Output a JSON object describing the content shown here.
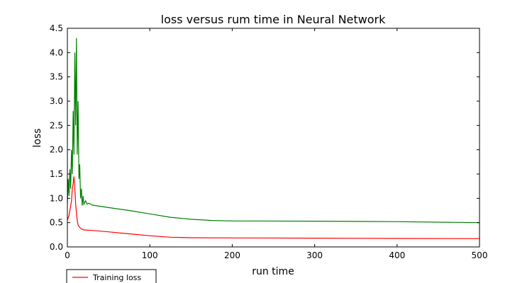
{
  "chart_data": {
    "type": "line",
    "title": "loss versus rum time in Neural Network",
    "xlabel": "run time",
    "ylabel": "loss",
    "xlim": [
      0,
      500
    ],
    "ylim": [
      0,
      4.5
    ],
    "x_ticks": [
      0,
      100,
      200,
      300,
      400,
      500
    ],
    "y_ticks": [
      0.0,
      0.5,
      1.0,
      1.5,
      2.0,
      2.5,
      3.0,
      3.5,
      4.0,
      4.5
    ],
    "x_tick_labels": [
      "0",
      "100",
      "200",
      "300",
      "400",
      "500"
    ],
    "y_tick_labels": [
      "0.0",
      "0.5",
      "1.0",
      "1.5",
      "2.0",
      "2.5",
      "3.0",
      "3.5",
      "4.0",
      "4.5"
    ],
    "grid": false,
    "legend_position": "bottom-left",
    "series": [
      {
        "name": "Training loss",
        "color": "#ff0000",
        "points": [
          [
            0,
            0.55
          ],
          [
            1,
            0.6
          ],
          [
            2,
            0.65
          ],
          [
            3,
            0.75
          ],
          [
            4,
            0.85
          ],
          [
            5,
            0.95
          ],
          [
            6,
            1.2
          ],
          [
            7,
            1.3
          ],
          [
            8,
            1.45
          ],
          [
            9,
            1.2
          ],
          [
            10,
            0.9
          ],
          [
            11,
            0.7
          ],
          [
            12,
            0.55
          ],
          [
            13,
            0.45
          ],
          [
            15,
            0.4
          ],
          [
            17,
            0.37
          ],
          [
            20,
            0.35
          ],
          [
            30,
            0.34
          ],
          [
            50,
            0.31
          ],
          [
            75,
            0.27
          ],
          [
            100,
            0.23
          ],
          [
            125,
            0.2
          ],
          [
            150,
            0.19
          ],
          [
            200,
            0.185
          ],
          [
            300,
            0.18
          ],
          [
            400,
            0.175
          ],
          [
            500,
            0.17
          ]
        ]
      },
      {
        "name": "",
        "color": "#008000",
        "points": [
          [
            0,
            0.9
          ],
          [
            1,
            1.4
          ],
          [
            2,
            1.05
          ],
          [
            3,
            1.6
          ],
          [
            4,
            1.2
          ],
          [
            5,
            2.0
          ],
          [
            6,
            1.5
          ],
          [
            7,
            2.8
          ],
          [
            8,
            1.9
          ],
          [
            9,
            4.0
          ],
          [
            10,
            2.5
          ],
          [
            11,
            4.3
          ],
          [
            12,
            1.9
          ],
          [
            13,
            3.0
          ],
          [
            14,
            1.4
          ],
          [
            15,
            1.7
          ],
          [
            16,
            1.0
          ],
          [
            17,
            1.2
          ],
          [
            18,
            0.85
          ],
          [
            19,
            1.05
          ],
          [
            20,
            0.88
          ],
          [
            22,
            0.95
          ],
          [
            24,
            0.88
          ],
          [
            26,
            0.9
          ],
          [
            30,
            0.86
          ],
          [
            50,
            0.81
          ],
          [
            75,
            0.75
          ],
          [
            100,
            0.68
          ],
          [
            125,
            0.61
          ],
          [
            150,
            0.57
          ],
          [
            175,
            0.545
          ],
          [
            200,
            0.535
          ],
          [
            300,
            0.53
          ],
          [
            400,
            0.52
          ],
          [
            500,
            0.5
          ]
        ]
      }
    ]
  }
}
